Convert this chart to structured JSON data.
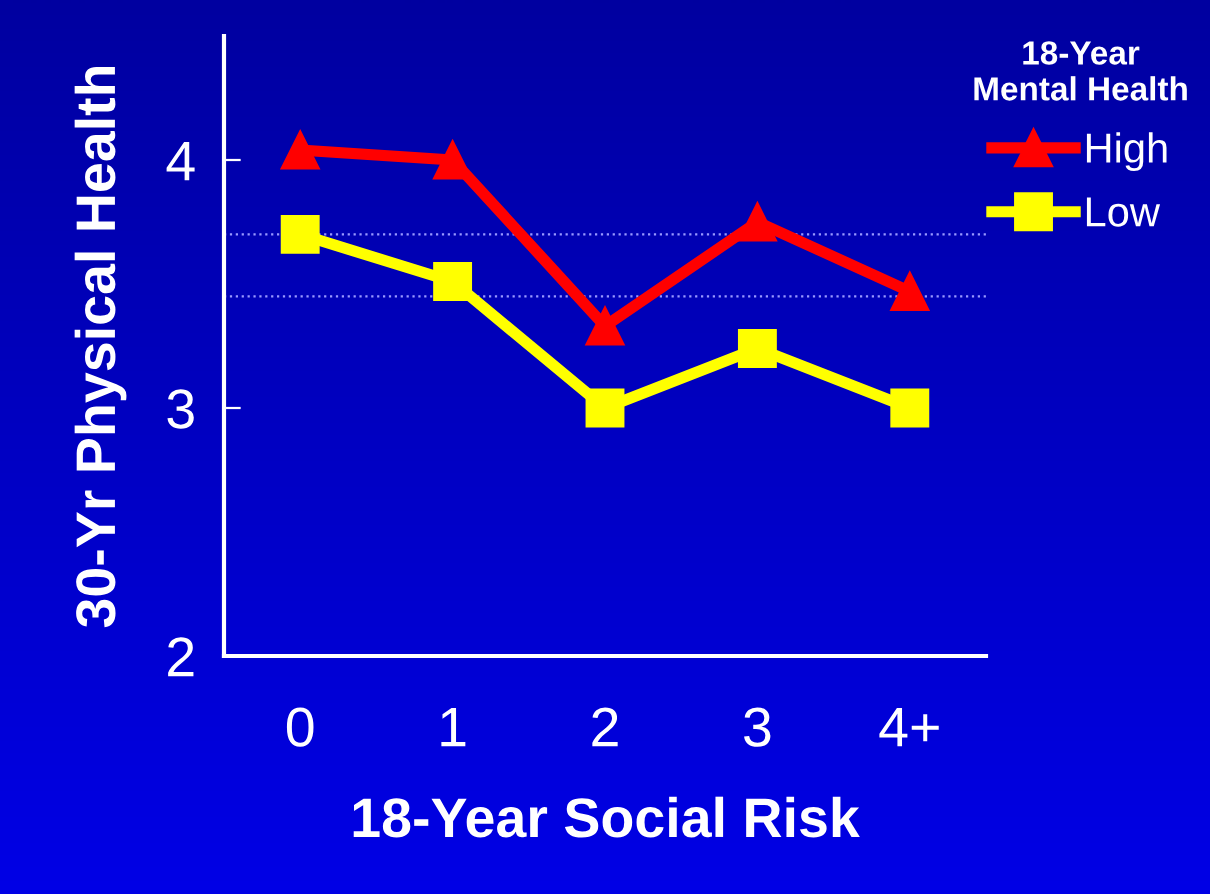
{
  "chart_data": {
    "type": "line",
    "xlabel": "18-Year Social Risk",
    "ylabel": "30-Yr Physical Health",
    "legend_title": "18-Year\nMental Health",
    "categories": [
      "0",
      "1",
      "2",
      "3",
      "4+"
    ],
    "series": [
      {
        "name": "High",
        "color": "#ff0000",
        "marker": "triangle",
        "values": [
          4.04,
          4.0,
          3.33,
          3.75,
          3.47
        ]
      },
      {
        "name": "Low",
        "color": "#ffff00",
        "marker": "square",
        "values": [
          3.7,
          3.51,
          3.0,
          3.24,
          3.0
        ]
      }
    ],
    "ylim": [
      2,
      4.5
    ],
    "yticks": [
      2,
      3,
      4
    ],
    "ref_lines": [
      {
        "axis": "y",
        "value": 3.7,
        "color": "#9999ff",
        "line_style": "dotted"
      },
      {
        "axis": "y",
        "value": 3.45,
        "color": "#9999ff",
        "line_style": "dotted"
      }
    ],
    "grid": false,
    "legend": "top right",
    "line_style": "solid"
  }
}
